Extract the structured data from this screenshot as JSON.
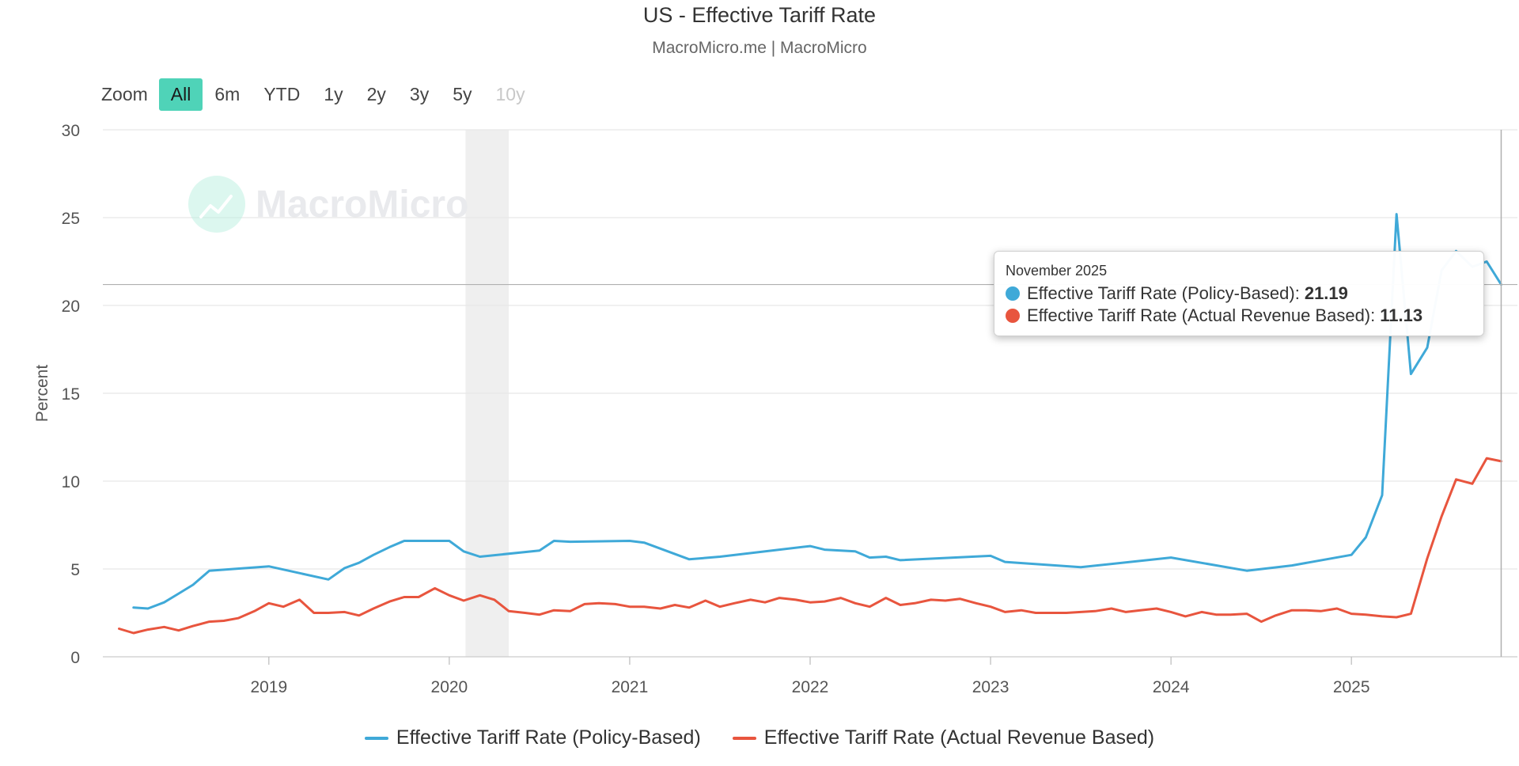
{
  "header": {
    "title": "US - Effective Tariff Rate",
    "subtitle": "MacroMicro.me | MacroMicro"
  },
  "watermark": "MacroMicro",
  "zoom": {
    "label": "Zoom",
    "buttons": [
      {
        "label": "All",
        "state": "active"
      },
      {
        "label": "6m",
        "state": "normal"
      },
      {
        "label": "YTD",
        "state": "normal"
      },
      {
        "label": "1y",
        "state": "normal"
      },
      {
        "label": "2y",
        "state": "normal"
      },
      {
        "label": "3y",
        "state": "normal"
      },
      {
        "label": "5y",
        "state": "normal"
      },
      {
        "label": "10y",
        "state": "disabled"
      }
    ]
  },
  "tooltip": {
    "date": "November 2025",
    "rows": [
      {
        "label": "Effective Tariff Rate (Policy-Based):",
        "value": "21.19",
        "color": "#3fa9d8"
      },
      {
        "label": "Effective Tariff Rate (Actual Revenue Based):",
        "value": "11.13",
        "color": "#e8553e"
      }
    ]
  },
  "colors": {
    "policy": "#3fa9d8",
    "revenue": "#e8553e",
    "accent": "#4fd3b8",
    "recession_band": "#efefef"
  },
  "chart_data": {
    "type": "line",
    "title": "US - Effective Tariff Rate",
    "xlabel": "",
    "ylabel": "Percent",
    "ylim": [
      0,
      30
    ],
    "yticks": [
      0,
      5,
      10,
      15,
      20,
      25,
      30
    ],
    "xlim": [
      2018.08,
      2025.92
    ],
    "xticks": [
      {
        "value": 2019,
        "label": "2019"
      },
      {
        "value": 2020,
        "label": "2020"
      },
      {
        "value": 2021,
        "label": "2021"
      },
      {
        "value": 2022,
        "label": "2022"
      },
      {
        "value": 2023,
        "label": "2023"
      },
      {
        "value": 2024,
        "label": "2024"
      },
      {
        "value": 2025,
        "label": "2025"
      }
    ],
    "recession_band": [
      2020.09,
      2020.33
    ],
    "crosshair": {
      "x": 2025.83,
      "y": 21.19
    },
    "series": [
      {
        "name": "Effective Tariff Rate (Policy-Based)",
        "color": "#3fa9d8",
        "x": [
          2018.25,
          2018.33,
          2018.42,
          2018.5,
          2018.58,
          2018.67,
          2019.0,
          2019.33,
          2019.42,
          2019.5,
          2019.58,
          2019.67,
          2019.75,
          2019.83,
          2020.0,
          2020.08,
          2020.17,
          2020.5,
          2020.58,
          2020.67,
          2021.0,
          2021.08,
          2021.33,
          2021.5,
          2022.0,
          2022.08,
          2022.25,
          2022.33,
          2022.42,
          2022.5,
          2023.0,
          2023.08,
          2023.5,
          2024.0,
          2024.42,
          2024.67,
          2025.0,
          2025.08,
          2025.17,
          2025.25,
          2025.33,
          2025.42,
          2025.5,
          2025.58,
          2025.67,
          2025.75,
          2025.83
        ],
        "values": [
          2.8,
          2.75,
          3.1,
          3.6,
          4.1,
          4.9,
          5.15,
          4.4,
          5.05,
          5.35,
          5.8,
          6.25,
          6.6,
          6.6,
          6.6,
          6.0,
          5.7,
          6.05,
          6.6,
          6.55,
          6.6,
          6.5,
          5.55,
          5.7,
          6.3,
          6.1,
          6.0,
          5.65,
          5.7,
          5.5,
          5.75,
          5.4,
          5.1,
          5.65,
          4.9,
          5.2,
          5.8,
          6.8,
          9.2,
          25.2,
          16.1,
          17.6,
          22.0,
          23.1,
          22.2,
          22.5,
          21.19
        ]
      },
      {
        "name": "Effective Tariff Rate (Actual Revenue Based)",
        "color": "#e8553e",
        "x": [
          2018.17,
          2018.25,
          2018.33,
          2018.42,
          2018.5,
          2018.58,
          2018.67,
          2018.75,
          2018.83,
          2018.92,
          2019.0,
          2019.08,
          2019.17,
          2019.25,
          2019.33,
          2019.42,
          2019.5,
          2019.58,
          2019.67,
          2019.75,
          2019.83,
          2019.92,
          2020.0,
          2020.08,
          2020.17,
          2020.25,
          2020.33,
          2020.42,
          2020.5,
          2020.58,
          2020.67,
          2020.75,
          2020.83,
          2020.92,
          2021.0,
          2021.08,
          2021.17,
          2021.25,
          2021.33,
          2021.42,
          2021.5,
          2021.58,
          2021.67,
          2021.75,
          2021.83,
          2021.92,
          2022.0,
          2022.08,
          2022.17,
          2022.25,
          2022.33,
          2022.42,
          2022.5,
          2022.58,
          2022.67,
          2022.75,
          2022.83,
          2022.92,
          2023.0,
          2023.08,
          2023.17,
          2023.25,
          2023.33,
          2023.42,
          2023.5,
          2023.58,
          2023.67,
          2023.75,
          2023.83,
          2023.92,
          2024.0,
          2024.08,
          2024.17,
          2024.25,
          2024.33,
          2024.42,
          2024.5,
          2024.58,
          2024.67,
          2024.75,
          2024.83,
          2024.92,
          2025.0,
          2025.08,
          2025.17,
          2025.25,
          2025.33,
          2025.42,
          2025.5,
          2025.58,
          2025.67,
          2025.75,
          2025.83
        ],
        "values": [
          1.6,
          1.35,
          1.55,
          1.7,
          1.5,
          1.75,
          2.0,
          2.05,
          2.2,
          2.6,
          3.05,
          2.85,
          3.25,
          2.5,
          2.5,
          2.55,
          2.35,
          2.75,
          3.15,
          3.4,
          3.4,
          3.9,
          3.5,
          3.2,
          3.5,
          3.25,
          2.6,
          2.5,
          2.4,
          2.65,
          2.6,
          3.0,
          3.05,
          3.0,
          2.85,
          2.85,
          2.75,
          2.95,
          2.8,
          3.2,
          2.85,
          3.05,
          3.25,
          3.1,
          3.35,
          3.25,
          3.1,
          3.15,
          3.35,
          3.05,
          2.85,
          3.35,
          2.95,
          3.05,
          3.25,
          3.2,
          3.3,
          3.05,
          2.85,
          2.55,
          2.65,
          2.5,
          2.5,
          2.5,
          2.55,
          2.6,
          2.75,
          2.55,
          2.65,
          2.75,
          2.55,
          2.3,
          2.55,
          2.4,
          2.4,
          2.45,
          2.0,
          2.35,
          2.65,
          2.65,
          2.6,
          2.75,
          2.45,
          2.4,
          2.3,
          2.25,
          2.45,
          5.6,
          8.0,
          10.1,
          9.85,
          11.3,
          11.13
        ]
      }
    ]
  }
}
